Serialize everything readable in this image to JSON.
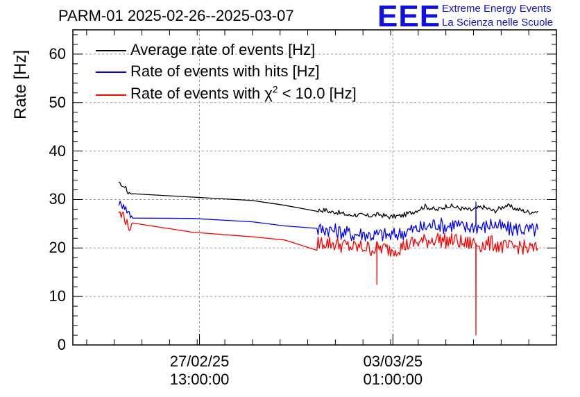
{
  "chart_data": {
    "type": "line",
    "title": "PARM-01 2025-02-26--2025-03-07",
    "ylabel": "Rate [Hz]",
    "xlabel": "",
    "ylim": [
      0,
      65
    ],
    "yticks": [
      0,
      10,
      20,
      30,
      40,
      50,
      60
    ],
    "x_ticks": [
      {
        "date": "27/02/25",
        "time": "13:00:00",
        "hours": 37
      },
      {
        "date": "03/03/25",
        "time": "01:00:00",
        "hours": 121
      }
    ],
    "x_unit": "hours since 2025-02-26 00:00",
    "xlim": [
      -18,
      192
    ],
    "grid": true,
    "legend_position": "top-left",
    "series": [
      {
        "name": "Average rate of events [Hz]",
        "color": "#000000",
        "x": [
          2,
          3,
          4,
          5,
          5.5,
          6,
          7,
          8,
          60,
          88,
          92,
          94,
          96,
          98,
          100,
          102,
          104,
          106,
          110,
          115,
          120,
          125,
          130,
          135,
          140,
          145,
          150,
          155,
          160,
          165,
          170,
          175,
          180,
          184
        ],
        "values": [
          33.5,
          33,
          32.5,
          32.8,
          31.6,
          31.3,
          31.3,
          31.2,
          29.8,
          27.8,
          27.8,
          27.4,
          27.5,
          27.2,
          27.0,
          26.7,
          26.9,
          26.8,
          26.6,
          26.9,
          26.4,
          26.7,
          27.5,
          28.6,
          27.8,
          28.8,
          28.2,
          27.8,
          28.5,
          27.6,
          28.8,
          28.0,
          27.4,
          27.6
        ]
      },
      {
        "name": "Rate of events with hits [Hz]",
        "color": "#0000ff",
        "x": [
          2,
          3,
          4,
          5,
          6,
          7,
          8,
          60,
          88,
          92,
          96,
          100,
          104,
          108,
          112,
          116,
          120,
          124,
          128,
          132,
          136,
          140,
          144,
          148,
          152,
          156,
          160,
          164,
          168,
          172,
          176,
          180,
          184
        ],
        "values": [
          29.5,
          28.5,
          29.5,
          28.0,
          27.5,
          26.8,
          26.8,
          25.4,
          23.7,
          24.0,
          23.5,
          23.2,
          22.8,
          23.0,
          22.6,
          22.8,
          22.5,
          23.0,
          23.6,
          24.0,
          24.4,
          25.1,
          24.4,
          25.0,
          24.0,
          24.6,
          24.2,
          25.0,
          24.3,
          23.8,
          24.1,
          23.6,
          23.8
        ]
      },
      {
        "name": "Rate of events with χ2 < 10.0 [Hz]",
        "color": "#ff0000",
        "x": [
          2,
          3,
          4,
          5,
          6,
          7,
          8,
          60,
          88,
          92,
          96,
          100,
          104,
          108,
          112,
          116,
          120,
          124,
          128,
          132,
          136,
          140,
          144,
          148,
          152,
          156,
          160,
          164,
          168,
          172,
          176,
          180,
          184
        ],
        "values": [
          27.5,
          26.5,
          27.2,
          25.5,
          24.5,
          24.2,
          24.2,
          22.3,
          21.0,
          21.2,
          20.8,
          20.5,
          20.1,
          20.2,
          19.8,
          20.0,
          19.6,
          20.1,
          20.8,
          21.2,
          21.5,
          22.0,
          21.4,
          21.6,
          20.8,
          21.1,
          20.6,
          21.0,
          20.3,
          20.0,
          20.4,
          19.8,
          19.9
        ]
      }
    ],
    "annotations": [
      {
        "series": 2,
        "x": 114,
        "value": 12.5,
        "note": "downward spike"
      },
      {
        "series": 2,
        "x": 157,
        "value": 2,
        "note": "downward spike"
      },
      {
        "series": 1,
        "x": 157,
        "value": 29.5,
        "note": "spike"
      }
    ]
  },
  "logo": {
    "mark": "EEE",
    "line1": "Extreme Energy Events",
    "line2": "La Scienza nelle Scuole"
  },
  "legend": {
    "item1": "Average rate of events [Hz]",
    "item2": "Rate of events with hits [Hz]",
    "item3_pre": "Rate of events with χ",
    "item3_sup": "2",
    "item3_post": " < 10.0 [Hz]"
  },
  "colors": {
    "black": "#000000",
    "blue": "#0000ff",
    "red": "#ff0000",
    "logo": "#1010e0",
    "grid": "#9a9a9a"
  }
}
